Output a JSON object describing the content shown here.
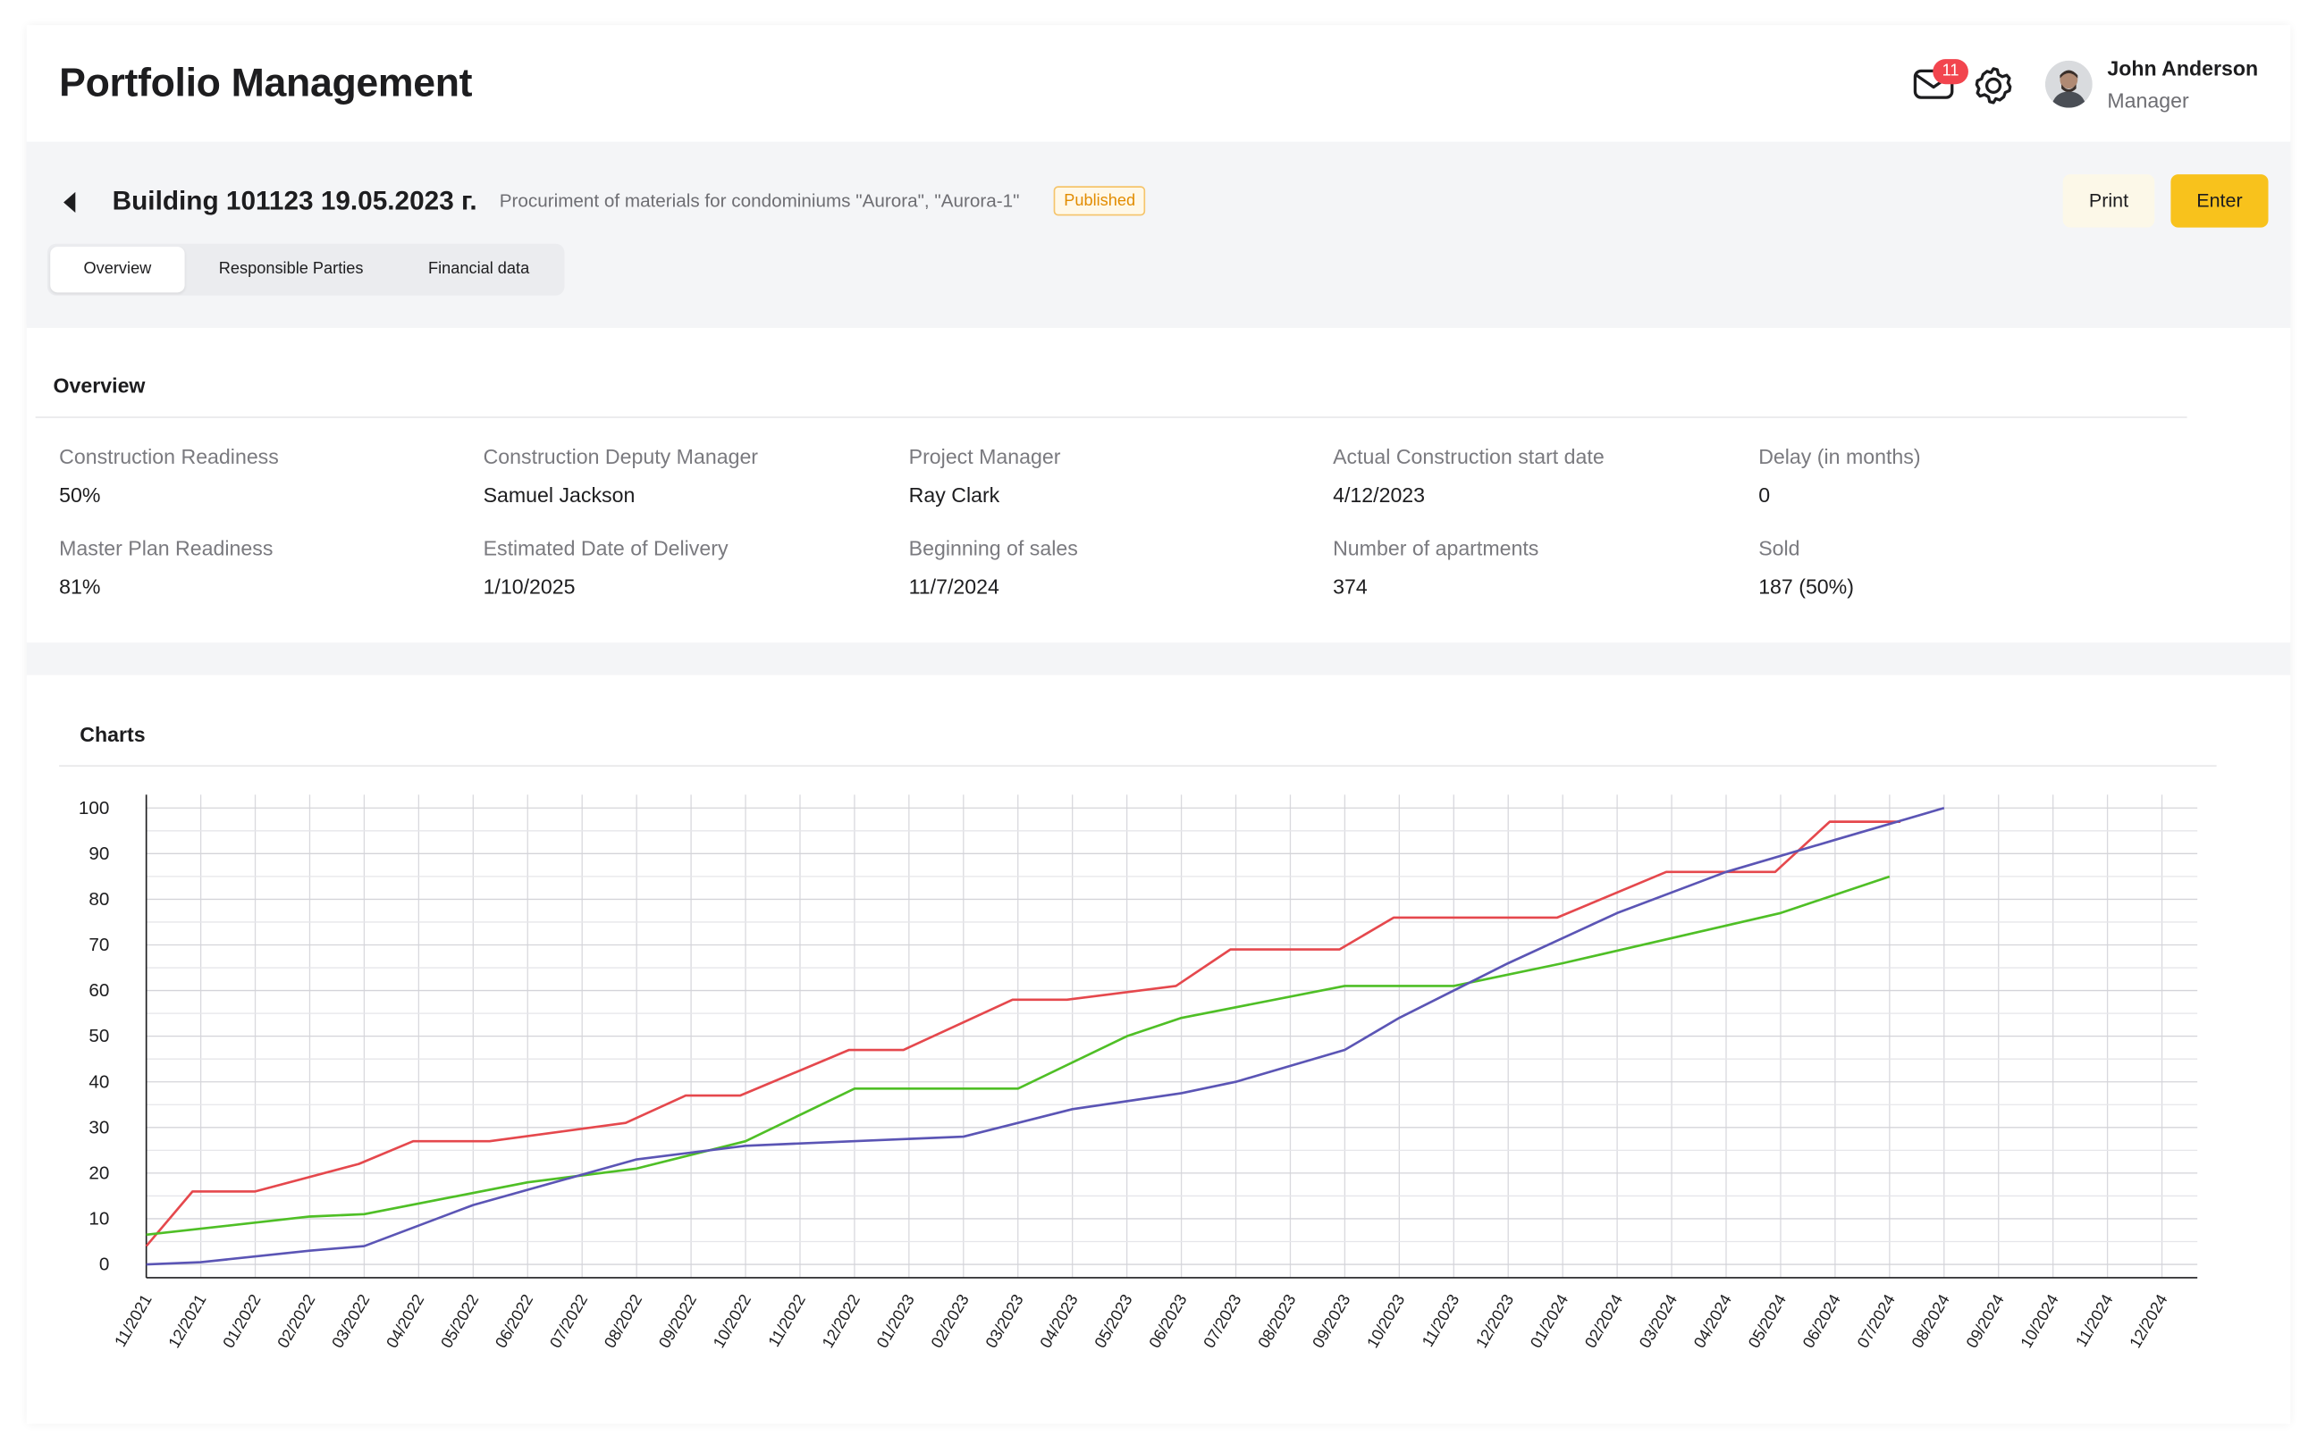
{
  "header": {
    "title": "Portfolio Management",
    "notifications_count": "11",
    "user_name": "John Anderson",
    "user_role": "Manager"
  },
  "building": {
    "title": "Building 101123 19.05.2023 г.",
    "description": "Procuriment of materials for condominiums \"Aurora\", \"Aurora-1\"",
    "status": "Published",
    "print_label": "Print",
    "enter_label": "Enter"
  },
  "tabs": [
    {
      "label": "Overview",
      "active": true
    },
    {
      "label": "Responsible Parties",
      "active": false
    },
    {
      "label": "Financial data",
      "active": false
    }
  ],
  "overview": {
    "title": "Overview",
    "fields": [
      {
        "label": "Construction Readiness",
        "value": "50%"
      },
      {
        "label": "Construction Deputy Manager",
        "value": "Samuel Jackson"
      },
      {
        "label": "Project Manager",
        "value": "Ray Clark"
      },
      {
        "label": "Actual Construction start date",
        "value": "4/12/2023"
      },
      {
        "label": "Delay (in months)",
        "value": "0"
      },
      {
        "label": "Master Plan Readiness",
        "value": "81%"
      },
      {
        "label": "Estimated Date of Delivery",
        "value": "1/10/2025"
      },
      {
        "label": "Beginning of sales",
        "value": "11/7/2024"
      },
      {
        "label": "Number of apartments",
        "value": "374"
      },
      {
        "label": "Sold",
        "value": "187 (50%)"
      }
    ]
  },
  "charts": {
    "title": "Charts"
  },
  "colors": {
    "accent": "#f8c21c",
    "badge": "#f2454e",
    "published": "#e28c00",
    "red_series": "#e5484d",
    "green_series": "#4fbf26",
    "blue_series": "#5b55b5"
  },
  "chart_data": {
    "type": "line",
    "title": "",
    "xlabel": "",
    "ylabel": "",
    "ylim": [
      0,
      100
    ],
    "yticks": [
      0,
      10,
      20,
      30,
      40,
      50,
      60,
      70,
      80,
      90,
      100
    ],
    "grid": true,
    "categories": [
      "11/2021",
      "12/2021",
      "01/2022",
      "02/2022",
      "03/2022",
      "04/2022",
      "05/2022",
      "06/2022",
      "07/2022",
      "08/2022",
      "09/2022",
      "10/2022",
      "11/2022",
      "12/2022",
      "01/2023",
      "02/2023",
      "03/2023",
      "04/2023",
      "05/2023",
      "06/2023",
      "07/2023",
      "08/2023",
      "09/2023",
      "10/2023",
      "11/2023",
      "12/2023",
      "01/2024",
      "02/2024",
      "03/2024",
      "04/2024",
      "05/2024",
      "06/2024",
      "07/2024",
      "08/2024",
      "09/2024",
      "10/2024",
      "11/2024",
      "12/2024"
    ],
    "series": [
      {
        "color": "#e5484d",
        "points": [
          [
            0,
            4
          ],
          [
            0.85,
            16
          ],
          [
            2,
            16
          ],
          [
            3.9,
            22
          ],
          [
            4.9,
            27
          ],
          [
            6.3,
            27
          ],
          [
            8.8,
            31
          ],
          [
            9.9,
            37
          ],
          [
            10.9,
            37
          ],
          [
            12.9,
            47
          ],
          [
            13.9,
            47
          ],
          [
            15.9,
            58
          ],
          [
            16.9,
            58
          ],
          [
            18.9,
            61
          ],
          [
            19.9,
            69
          ],
          [
            21.9,
            69
          ],
          [
            22.9,
            76
          ],
          [
            23.9,
            76
          ],
          [
            25.9,
            76
          ],
          [
            27.9,
            86
          ],
          [
            28.9,
            86
          ],
          [
            29.9,
            86
          ],
          [
            30.9,
            97
          ],
          [
            31.9,
            97
          ],
          [
            32.2,
            97
          ]
        ]
      },
      {
        "color": "#4fbf26",
        "points": [
          [
            0,
            6.5
          ],
          [
            3,
            10.5
          ],
          [
            4,
            11
          ],
          [
            7,
            18
          ],
          [
            9,
            21
          ],
          [
            11,
            27
          ],
          [
            13,
            38.5
          ],
          [
            14,
            38.5
          ],
          [
            16,
            38.5
          ],
          [
            18,
            50
          ],
          [
            19,
            54
          ],
          [
            22,
            61
          ],
          [
            24,
            61
          ],
          [
            26,
            66
          ],
          [
            30,
            77
          ],
          [
            32,
            85
          ]
        ]
      },
      {
        "color": "#5b55b5",
        "points": [
          [
            0,
            0
          ],
          [
            1,
            0.5
          ],
          [
            3,
            3
          ],
          [
            4,
            4
          ],
          [
            6,
            13
          ],
          [
            9,
            23
          ],
          [
            11,
            26
          ],
          [
            12,
            26.5
          ],
          [
            15,
            28
          ],
          [
            17,
            34
          ],
          [
            19,
            37.5
          ],
          [
            20,
            40
          ],
          [
            22,
            47
          ],
          [
            23,
            54
          ],
          [
            25,
            66
          ],
          [
            27,
            77
          ],
          [
            29,
            86
          ],
          [
            31,
            93
          ],
          [
            33,
            100
          ]
        ]
      }
    ]
  }
}
